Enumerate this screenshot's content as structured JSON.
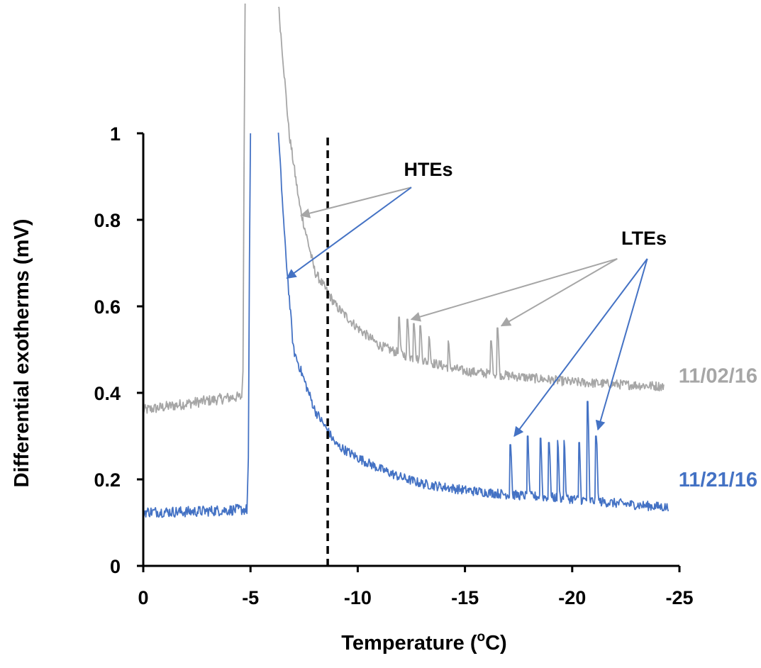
{
  "chart_data": {
    "type": "line",
    "title": "",
    "xlabel": "Temperature (°C)",
    "xlabel_main": "Temperature (",
    "xlabel_sup": "o",
    "xlabel_end": "C)",
    "ylabel": "Differential exotherms (mV)",
    "xlim": [
      0,
      -25
    ],
    "ylim": [
      0,
      1
    ],
    "x_ticks": [
      0,
      -5,
      -10,
      -15,
      -20,
      -25
    ],
    "y_ticks": [
      0,
      0.2,
      0.4,
      0.6,
      0.8,
      1
    ],
    "x_tick_labels": [
      "0",
      "-5",
      "-10",
      "-15",
      "-20",
      "-25"
    ],
    "y_tick_labels": [
      "0",
      "0.2",
      "0.4",
      "0.6",
      "0.8",
      "1"
    ],
    "grid": false,
    "reference_line": {
      "x": -8.6,
      "style": "dashed",
      "color": "#000000"
    },
    "series": [
      {
        "name": "11/02/16",
        "color": "#a6a6a6",
        "baseline": [
          [
            0,
            0.36
          ],
          [
            -2,
            0.375
          ],
          [
            -4.2,
            0.39
          ]
        ],
        "rise_x": -4.6,
        "peak_decay": [
          [
            -6.3,
            1.3
          ],
          [
            -6.8,
            1.0
          ],
          [
            -7.3,
            0.83
          ],
          [
            -8.0,
            0.68
          ],
          [
            -9.0,
            0.6
          ],
          [
            -10.0,
            0.55
          ],
          [
            -11.0,
            0.51
          ],
          [
            -12.0,
            0.49
          ],
          [
            -13.0,
            0.475
          ],
          [
            -15.0,
            0.45
          ],
          [
            -17.0,
            0.44
          ],
          [
            -20.0,
            0.425
          ],
          [
            -22.0,
            0.42
          ],
          [
            -24.3,
            0.415
          ]
        ],
        "spikes": [
          [
            -11.9,
            0.575
          ],
          [
            -12.3,
            0.57
          ],
          [
            -12.6,
            0.56
          ],
          [
            -12.9,
            0.555
          ],
          [
            -13.3,
            0.53
          ],
          [
            -14.2,
            0.52
          ],
          [
            -16.2,
            0.52
          ],
          [
            -16.5,
            0.55
          ]
        ]
      },
      {
        "name": "11/21/16",
        "color": "#4472c4",
        "baseline": [
          [
            0,
            0.125
          ],
          [
            -2,
            0.125
          ],
          [
            -4.5,
            0.13
          ]
        ],
        "rise_x": -4.85,
        "peak_decay": [
          [
            -6.3,
            1.0
          ],
          [
            -6.6,
            0.75
          ],
          [
            -7.0,
            0.5
          ],
          [
            -8.0,
            0.36
          ],
          [
            -9.0,
            0.28
          ],
          [
            -10.0,
            0.25
          ],
          [
            -11.0,
            0.225
          ],
          [
            -12.0,
            0.205
          ],
          [
            -13.0,
            0.19
          ],
          [
            -15.0,
            0.175
          ],
          [
            -17.0,
            0.165
          ],
          [
            -20.0,
            0.155
          ],
          [
            -22.0,
            0.145
          ],
          [
            -24.5,
            0.135
          ]
        ],
        "spikes": [
          [
            -17.1,
            0.28
          ],
          [
            -17.9,
            0.3
          ],
          [
            -18.5,
            0.295
          ],
          [
            -18.9,
            0.285
          ],
          [
            -19.3,
            0.29
          ],
          [
            -19.6,
            0.29
          ],
          [
            -20.3,
            0.285
          ],
          [
            -20.7,
            0.38
          ],
          [
            -21.1,
            0.3
          ]
        ]
      }
    ],
    "annotations": [
      {
        "text": "HTEs",
        "color": "#000000",
        "arrows": [
          {
            "color": "#a6a6a6",
            "from": [
              -12.5,
              0.875
            ],
            "to": [
              -7.35,
              0.81
            ]
          },
          {
            "color": "#4472c4",
            "from": [
              -12.5,
              0.875
            ],
            "to": [
              -6.7,
              0.665
            ]
          }
        ]
      },
      {
        "text": "LTEs",
        "color": "#000000",
        "arrows": [
          {
            "color": "#a6a6a6",
            "from": [
              -22.1,
              0.71
            ],
            "to": [
              -12.5,
              0.57
            ]
          },
          {
            "color": "#a6a6a6",
            "from": [
              -22.1,
              0.71
            ],
            "to": [
              -16.7,
              0.555
            ]
          },
          {
            "color": "#4472c4",
            "from": [
              -23.5,
              0.71
            ],
            "to": [
              -17.3,
              0.3
            ]
          },
          {
            "color": "#4472c4",
            "from": [
              -23.5,
              0.71
            ],
            "to": [
              -21.2,
              0.315
            ]
          }
        ]
      }
    ]
  }
}
